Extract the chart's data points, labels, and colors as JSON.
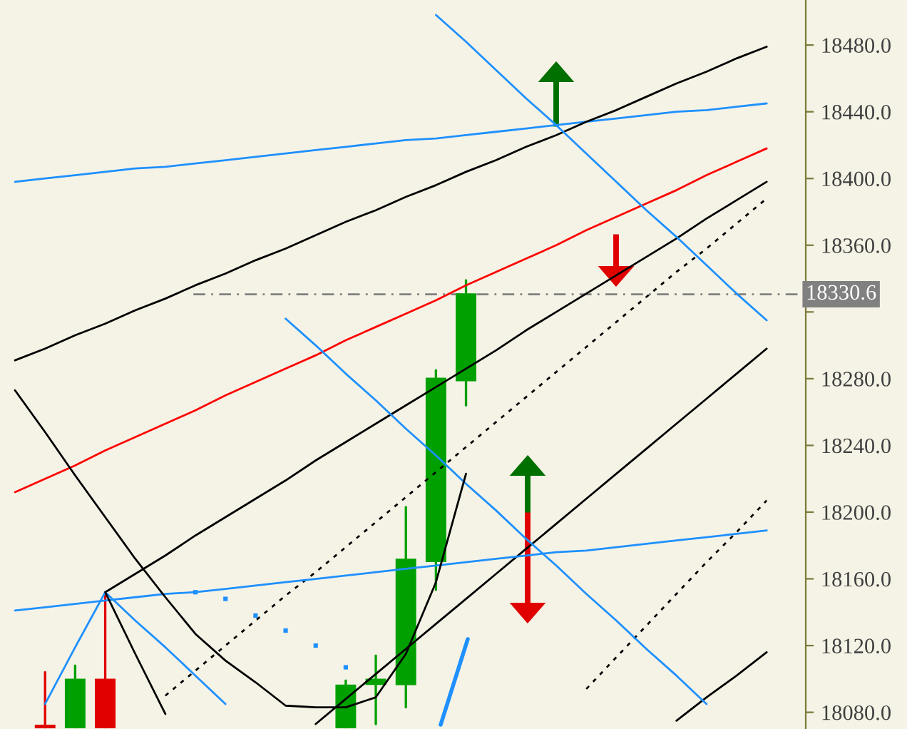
{
  "chart_data": {
    "type": "candlestick",
    "categories": [
      null,
      null,
      null,
      null,
      null,
      null,
      null,
      null,
      null,
      null,
      null,
      null,
      null,
      null,
      null,
      null,
      null,
      null,
      null,
      null,
      null,
      null,
      null,
      null,
      null,
      null,
      null
    ],
    "ohlc": [
      null,
      [
        18072,
        18104,
        18071,
        18071
      ],
      [
        18071,
        18108,
        18071,
        18099.6
      ],
      [
        18099.6,
        18152,
        18071,
        18071
      ],
      null,
      null,
      null,
      null,
      null,
      null,
      null,
      [
        18071,
        18099,
        18071,
        18096
      ],
      [
        18097,
        18114,
        18073,
        18099.6
      ],
      [
        18096.9,
        18203,
        18083,
        18171.5
      ],
      [
        18170.6,
        18285,
        18153.5,
        18280
      ],
      [
        18279,
        18339,
        18264,
        18330.6
      ],
      null,
      null,
      null,
      null,
      null,
      null,
      null,
      null,
      null,
      null,
      null
    ],
    "colors": [
      null,
      "#e00000",
      "#00a000",
      "#e00000",
      null,
      null,
      null,
      null,
      null,
      null,
      null,
      "#00a000",
      "#00a000",
      "#00a000",
      "#00a000",
      "#00a000",
      null,
      null,
      null,
      null,
      null,
      null,
      null,
      null,
      null,
      null,
      null
    ],
    "series": [
      {
        "type": "line",
        "color": "#1e90ff",
        "values": [
          18398,
          18400,
          18402,
          18404,
          18406,
          18407,
          18409,
          18411,
          18413,
          18415,
          18417,
          18419,
          18421,
          18423,
          18424,
          18426,
          18428,
          18430,
          18432,
          18434,
          18436,
          18438,
          18440,
          18441,
          18443,
          18445,
          null
        ]
      },
      {
        "type": "line",
        "color": "#ff0000",
        "values": [
          18212,
          18220,
          18228,
          18237,
          18245,
          18253,
          18261,
          18270,
          18278,
          18286,
          18294,
          18303,
          18311,
          18319,
          18327,
          18336,
          18344,
          18352,
          18360,
          18369,
          18377,
          18385,
          18393,
          18402,
          18410,
          18418,
          null
        ]
      },
      {
        "type": "line",
        "color": "#000000",
        "values": [
          18291,
          18298,
          18306,
          18313,
          18321,
          18328,
          18336,
          18343,
          18351,
          18358,
          18366,
          18374,
          18381,
          18389,
          18396,
          18404,
          18411,
          18419,
          18426,
          18434,
          18441,
          18449,
          18457,
          18464,
          18472,
          18479,
          null
        ]
      },
      {
        "type": "line",
        "color": "#000000",
        "values": [
          null,
          null,
          null,
          18152,
          18163,
          18174,
          18186,
          18197,
          18208,
          18219,
          18231,
          18242,
          18253,
          18264,
          18275,
          18286,
          18297,
          18309,
          18320,
          18331,
          18342,
          18353,
          18364,
          18376,
          18387,
          18398,
          null
        ]
      },
      {
        "type": "line",
        "color": "#000000",
        "line_style": "dotted",
        "values": [
          null,
          null,
          null,
          null,
          null,
          18090,
          18105,
          18120,
          18135,
          18150,
          18164,
          18179,
          18194,
          18209,
          18224,
          18239,
          18254,
          18269,
          18284,
          18299,
          18314,
          18329,
          18344,
          18358,
          18373,
          18388,
          null
        ]
      },
      {
        "type": "line",
        "color": "#000000",
        "values": [
          null,
          null,
          null,
          null,
          null,
          null,
          null,
          null,
          null,
          null,
          18073,
          18088,
          18103,
          18118,
          18133,
          18148,
          18163,
          18178,
          18193,
          18208,
          18223,
          18238,
          18253,
          18268,
          18283,
          18298,
          null
        ]
      },
      {
        "type": "line",
        "color": "#000000",
        "line_style": "dotted",
        "values": [
          null,
          null,
          null,
          null,
          null,
          null,
          null,
          null,
          null,
          null,
          null,
          null,
          null,
          null,
          null,
          null,
          null,
          null,
          null,
          18094,
          18113,
          18132,
          18151,
          18170,
          18188,
          18207,
          null
        ]
      },
      {
        "type": "line",
        "color": "#000000",
        "values": [
          null,
          null,
          null,
          null,
          null,
          null,
          null,
          null,
          null,
          null,
          null,
          null,
          null,
          null,
          null,
          null,
          null,
          null,
          null,
          null,
          null,
          null,
          18075,
          18089,
          18102,
          18116,
          null
        ]
      },
      {
        "type": "line",
        "color": "#1e90ff",
        "values": [
          18141,
          18143,
          18145,
          18147,
          18149,
          18151,
          18152,
          18154,
          18156,
          18158,
          18160,
          18162,
          18164,
          18166,
          18168,
          18170,
          18172,
          18174,
          18176,
          18177,
          18179,
          18181,
          18183,
          18185,
          18187,
          18189,
          null
        ]
      },
      {
        "type": "line",
        "color": "#1e90ff",
        "values": [
          null,
          null,
          null,
          null,
          null,
          null,
          null,
          null,
          null,
          null,
          null,
          null,
          null,
          null,
          18498,
          18482,
          18465,
          18448,
          18432,
          18415,
          18398,
          18381,
          18365,
          18348,
          18331,
          18315,
          null
        ]
      },
      {
        "type": "line",
        "color": "#1e90ff",
        "values": [
          null,
          null,
          null,
          null,
          null,
          null,
          null,
          null,
          null,
          18316,
          18300,
          18283,
          18267,
          18250,
          18234,
          18217,
          18201,
          18184,
          18168,
          18151,
          18135,
          18118,
          18102,
          18085,
          null,
          null,
          null
        ]
      },
      {
        "type": "line",
        "color": "#1e90ff",
        "values": [
          null,
          null,
          null,
          18152,
          18135,
          18119,
          18102,
          18085,
          null,
          null,
          null,
          null,
          null,
          null,
          null,
          null,
          null,
          null,
          null,
          null,
          null,
          null,
          null,
          null,
          null,
          null,
          null
        ]
      },
      {
        "type": "line",
        "color": "#1e90ff",
        "values": [
          null,
          18085,
          18119,
          18152,
          null,
          null,
          null,
          null,
          null,
          null,
          null,
          null,
          null,
          null,
          null,
          null,
          null,
          null,
          null,
          null,
          null,
          null,
          null,
          null,
          null,
          null,
          null
        ]
      },
      {
        "type": "line",
        "color": "#000000",
        "values": [
          null,
          null,
          null,
          18152,
          18115,
          18079,
          null,
          null,
          null,
          null,
          null,
          null,
          null,
          null,
          null,
          null,
          null,
          null,
          null,
          null,
          null,
          null,
          null,
          null,
          null,
          null,
          null
        ]
      },
      {
        "type": "line",
        "color": "#000000",
        "values": [
          18273,
          18248,
          18222,
          18197,
          18172,
          18149,
          18127,
          18111,
          18098,
          18084,
          18083,
          18083,
          18089,
          18115,
          18158,
          18223,
          null,
          null,
          null,
          null,
          null,
          null,
          null,
          null,
          null,
          null,
          null
        ]
      },
      {
        "type": "scatter",
        "color": "#1e90ff",
        "values": [
          null,
          null,
          null,
          null,
          null,
          null,
          18152,
          18148,
          18138,
          18129,
          18120,
          18107,
          null,
          null,
          null,
          null,
          null,
          null,
          null,
          null,
          null,
          null,
          null,
          null,
          null,
          null,
          null
        ]
      }
    ],
    "ylim": [
      18070,
      18507
    ],
    "yticks": [
      {
        "value": 18080,
        "label": "18080.0"
      },
      {
        "value": 18120,
        "label": "18120.0"
      },
      {
        "value": 18160,
        "label": "18160.0"
      },
      {
        "value": 18200,
        "label": "18200.0"
      },
      {
        "value": 18240,
        "label": "18240.0"
      },
      {
        "value": 18280,
        "label": "18280.0"
      },
      {
        "value": 18320,
        "label": null
      },
      {
        "value": 18360,
        "label": "18360.0"
      },
      {
        "value": 18400,
        "label": "18400.0"
      },
      {
        "value": 18440,
        "label": "18440.0"
      },
      {
        "value": 18480,
        "label": "18480.0"
      }
    ],
    "ref_lines": [
      {
        "axis": "y",
        "value": 18330.6,
        "label": "18330.6",
        "color": "#808080",
        "line_style": "dashed"
      }
    ],
    "tick_labels": "y",
    "grid": false,
    "legend": false
  }
}
